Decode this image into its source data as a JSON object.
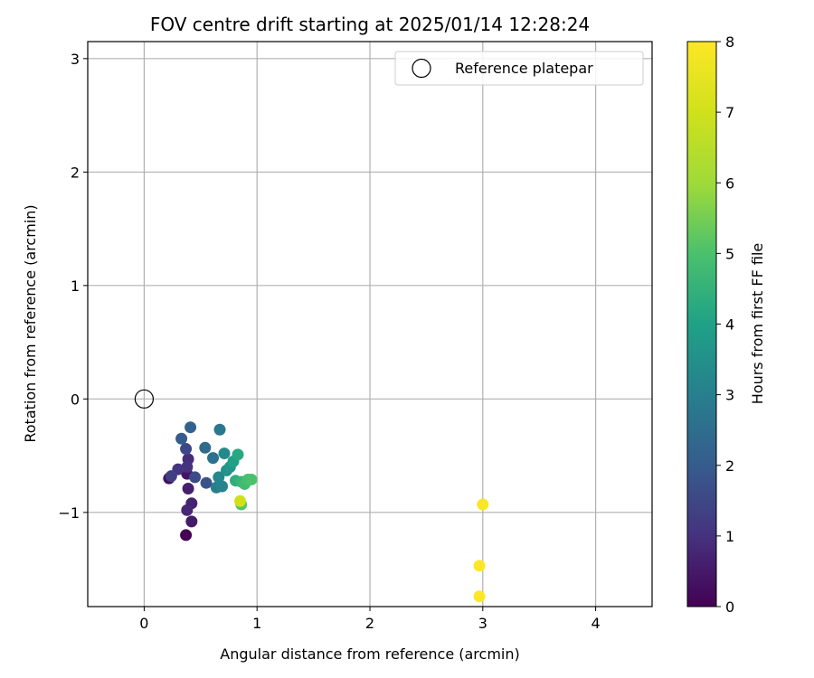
{
  "chart_data": {
    "type": "scatter",
    "title": "FOV centre drift starting at 2025/01/14 12:28:24",
    "xlabel": "Angular distance from reference (arcmin)",
    "ylabel": "Rotation from reference (arcmin)",
    "xlim": [
      -0.5,
      4.5
    ],
    "ylim": [
      -1.83,
      3.15
    ],
    "xticks": [
      0,
      1,
      2,
      3,
      4
    ],
    "yticks": [
      -1,
      0,
      1,
      2,
      3
    ],
    "xtick_labels": [
      "0",
      "1",
      "2",
      "3",
      "4"
    ],
    "ytick_labels": [
      "−1",
      "0",
      "1",
      "2",
      "3"
    ],
    "grid": true,
    "legend": {
      "placement": "top-right",
      "entries": [
        "Reference platepar"
      ]
    },
    "reference_point": {
      "x": 0,
      "y": 0,
      "label": "Reference platepar"
    },
    "colorbar": {
      "label": "Hours from first FF file",
      "range": [
        0,
        8
      ],
      "ticks": [
        0,
        1,
        2,
        3,
        4,
        5,
        6,
        7,
        8
      ],
      "tick_labels": [
        "0",
        "1",
        "2",
        "3",
        "4",
        "5",
        "6",
        "7",
        "8"
      ],
      "colormap": "viridis"
    },
    "points": [
      {
        "x": 0.37,
        "y": -1.2,
        "hours": 0.0
      },
      {
        "x": 0.22,
        "y": -0.7,
        "hours": 0.3
      },
      {
        "x": 0.38,
        "y": -0.66,
        "hours": 0.4
      },
      {
        "x": 0.42,
        "y": -1.08,
        "hours": 0.5
      },
      {
        "x": 0.39,
        "y": -0.79,
        "hours": 0.6
      },
      {
        "x": 0.42,
        "y": -0.92,
        "hours": 0.7
      },
      {
        "x": 0.38,
        "y": -0.98,
        "hours": 0.8
      },
      {
        "x": 0.39,
        "y": -0.53,
        "hours": 0.9
      },
      {
        "x": 0.38,
        "y": -0.6,
        "hours": 1.0
      },
      {
        "x": 0.3,
        "y": -0.62,
        "hours": 1.1
      },
      {
        "x": 0.24,
        "y": -0.68,
        "hours": 1.3
      },
      {
        "x": 0.37,
        "y": -0.44,
        "hours": 1.5
      },
      {
        "x": 0.45,
        "y": -0.69,
        "hours": 1.6
      },
      {
        "x": 0.55,
        "y": -0.74,
        "hours": 1.8
      },
      {
        "x": 0.33,
        "y": -0.35,
        "hours": 2.0
      },
      {
        "x": 0.41,
        "y": -0.25,
        "hours": 2.2
      },
      {
        "x": 0.54,
        "y": -0.43,
        "hours": 2.4
      },
      {
        "x": 0.61,
        "y": -0.52,
        "hours": 2.6
      },
      {
        "x": 0.67,
        "y": -0.27,
        "hours": 2.8
      },
      {
        "x": 0.64,
        "y": -0.78,
        "hours": 3.0
      },
      {
        "x": 0.69,
        "y": -0.77,
        "hours": 3.1
      },
      {
        "x": 0.66,
        "y": -0.69,
        "hours": 3.2
      },
      {
        "x": 0.71,
        "y": -0.48,
        "hours": 3.3
      },
      {
        "x": 0.73,
        "y": -0.63,
        "hours": 3.5
      },
      {
        "x": 0.76,
        "y": -0.6,
        "hours": 3.7
      },
      {
        "x": 0.79,
        "y": -0.55,
        "hours": 4.0
      },
      {
        "x": 0.83,
        "y": -0.49,
        "hours": 4.2
      },
      {
        "x": 0.81,
        "y": -0.72,
        "hours": 4.4
      },
      {
        "x": 0.86,
        "y": -0.73,
        "hours": 4.6
      },
      {
        "x": 0.89,
        "y": -0.75,
        "hours": 4.8
      },
      {
        "x": 0.92,
        "y": -0.71,
        "hours": 4.9
      },
      {
        "x": 0.95,
        "y": -0.71,
        "hours": 5.0
      },
      {
        "x": 0.86,
        "y": -0.93,
        "hours": 5.1
      },
      {
        "x": 0.85,
        "y": -0.9,
        "hours": 7.0
      },
      {
        "x": 3.0,
        "y": -0.93,
        "hours": 7.9
      },
      {
        "x": 2.97,
        "y": -1.47,
        "hours": 8.0
      },
      {
        "x": 2.97,
        "y": -1.74,
        "hours": 8.0
      }
    ]
  }
}
